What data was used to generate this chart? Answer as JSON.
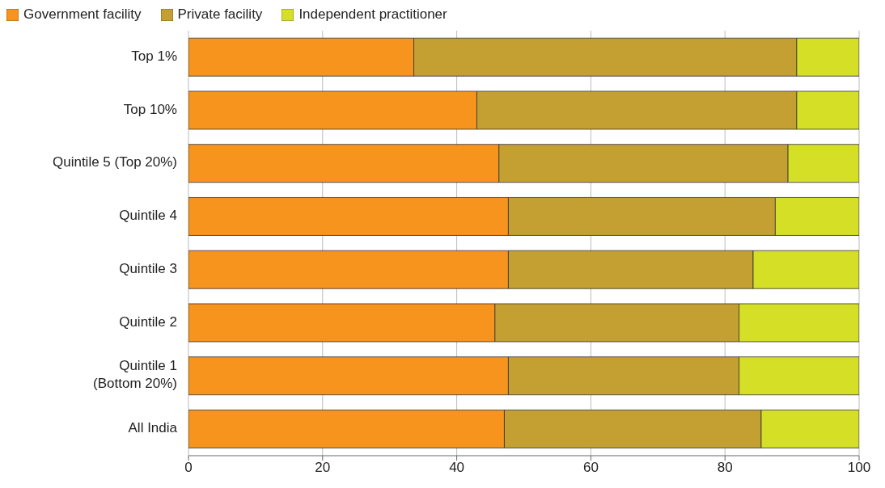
{
  "chart_data": {
    "type": "bar",
    "orientation": "horizontal",
    "stacked": true,
    "categories": [
      "Top 1%",
      "Top 10%",
      "Quintile 5 (Top 20%)",
      "Quintile 4",
      "Quintile 3",
      "Quintile 2",
      "Quintile 1 (Bottom 20%)",
      "All India"
    ],
    "series": [
      {
        "name": "Government facility",
        "color": "#f7941d",
        "values": [
          33.6,
          43.0,
          46.3,
          47.7,
          47.7,
          45.7,
          47.7,
          47.1
        ]
      },
      {
        "name": "Private facility",
        "color": "#c4a032",
        "values": [
          57.1,
          47.7,
          43.1,
          39.8,
          36.5,
          36.4,
          34.4,
          38.3
        ]
      },
      {
        "name": "Independent practitioner",
        "color": "#d4df26",
        "values": [
          9.3,
          9.3,
          10.6,
          12.5,
          15.8,
          17.9,
          17.9,
          14.6
        ]
      }
    ],
    "xlim": [
      0,
      100
    ],
    "xticks": [
      0,
      20,
      40,
      60,
      80,
      100
    ],
    "grid": "x",
    "legend": "top left"
  }
}
